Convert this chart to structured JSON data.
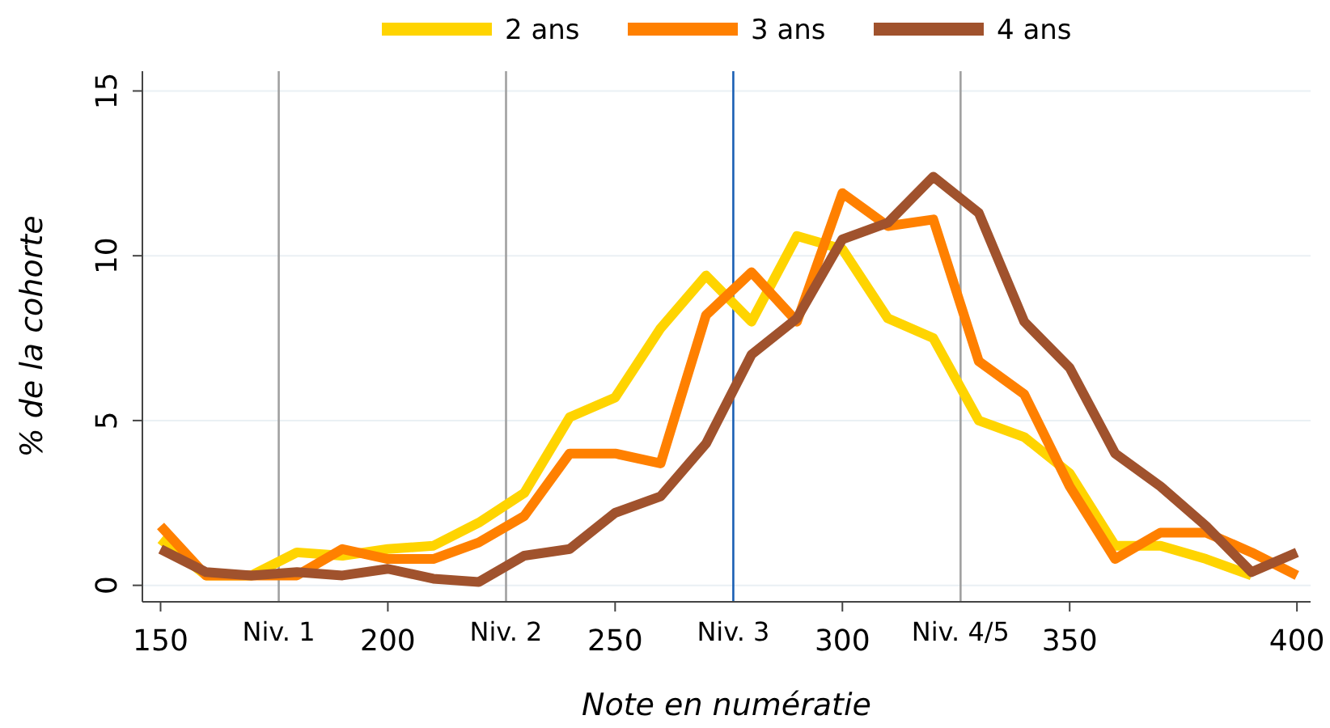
{
  "chart_data": {
    "type": "line",
    "xlabel": "Note en numératie",
    "ylabel": "% de la cohorte",
    "x": [
      150,
      160,
      170,
      180,
      190,
      200,
      210,
      220,
      230,
      240,
      250,
      260,
      270,
      280,
      290,
      300,
      310,
      320,
      330,
      340,
      350,
      360,
      370,
      380,
      390,
      400
    ],
    "series": [
      {
        "name": "2 ans",
        "color": "#ffd400",
        "values": [
          1.4,
          0.3,
          0.3,
          1.0,
          0.9,
          1.1,
          1.2,
          1.9,
          2.8,
          5.1,
          5.7,
          7.8,
          9.4,
          8.0,
          10.6,
          10.2,
          8.1,
          7.5,
          5.0,
          4.5,
          3.4,
          1.2,
          1.2,
          0.8,
          0.3,
          null
        ]
      },
      {
        "name": "3 ans",
        "color": "#ff8000",
        "values": [
          1.8,
          0.3,
          0.3,
          0.3,
          1.1,
          0.8,
          0.8,
          1.3,
          2.1,
          4.0,
          4.0,
          3.7,
          8.2,
          9.5,
          8.0,
          11.9,
          10.9,
          11.1,
          6.8,
          5.8,
          3.0,
          0.8,
          1.6,
          1.6,
          1.0,
          0.3
        ]
      },
      {
        "name": "4 ans",
        "color": "#a0522d",
        "values": [
          1.1,
          0.4,
          0.3,
          0.4,
          0.3,
          0.5,
          0.2,
          0.1,
          0.9,
          1.1,
          2.2,
          2.7,
          4.3,
          7.0,
          8.1,
          10.5,
          11.0,
          12.4,
          11.3,
          8.0,
          6.6,
          4.0,
          3.0,
          1.8,
          0.4,
          1.0
        ]
      }
    ],
    "xlim": [
      146,
      403
    ],
    "xticks": [
      150,
      200,
      250,
      300,
      350,
      400
    ],
    "ylim": [
      -0.5,
      15.6
    ],
    "yticks": [
      0,
      5,
      10,
      15
    ],
    "ref_lines": [
      {
        "axis": "x",
        "value": 176,
        "label": "Niv. 1",
        "color": "#a0a0a0"
      },
      {
        "axis": "x",
        "value": 226,
        "label": "Niv. 2",
        "color": "#a0a0a0"
      },
      {
        "axis": "x",
        "value": 276,
        "label": "Niv. 3",
        "color": "#1a5fb4"
      },
      {
        "axis": "x",
        "value": 326,
        "label": "Niv. 4/5",
        "color": "#a0a0a0"
      }
    ],
    "grid": "y",
    "legend": "top",
    "line_style": "solid"
  }
}
